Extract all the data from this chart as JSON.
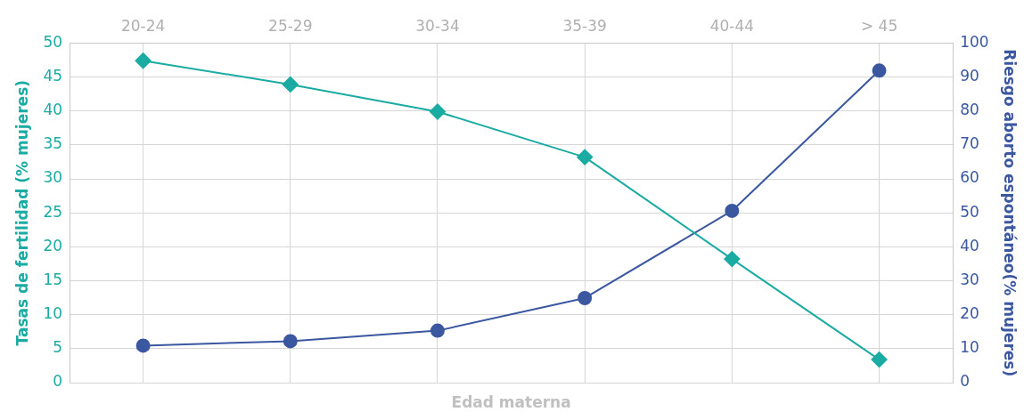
{
  "chart_data": {
    "type": "line",
    "categories": [
      "20-24",
      "25-29",
      "30-34",
      "35-39",
      "40-44",
      "> 45"
    ],
    "xlabel": "Edad materna",
    "ylabel": "Tasas de fertilidad (% mujeres)",
    "y2label": "Riesgo aborto espontáneo(% mujeres)",
    "ylim": [
      0,
      50
    ],
    "yticks": [
      0,
      5,
      10,
      15,
      20,
      25,
      30,
      35,
      40,
      45,
      50
    ],
    "y2lim": [
      0,
      100
    ],
    "y2ticks": [
      0,
      10,
      20,
      30,
      40,
      50,
      60,
      70,
      80,
      90,
      100
    ],
    "grid": true,
    "legend": false,
    "series": [
      {
        "color": "#1aaba3",
        "marker": "diamond",
        "values": [
          47.4,
          43.9,
          39.9,
          33.2,
          18.2,
          3.4
        ]
      },
      {
        "color": "#3a57a0",
        "marker": "circle",
        "axis": "y2",
        "values": [
          10.9,
          12.2,
          15.3,
          24.9,
          50.6,
          91.9
        ]
      }
    ]
  }
}
